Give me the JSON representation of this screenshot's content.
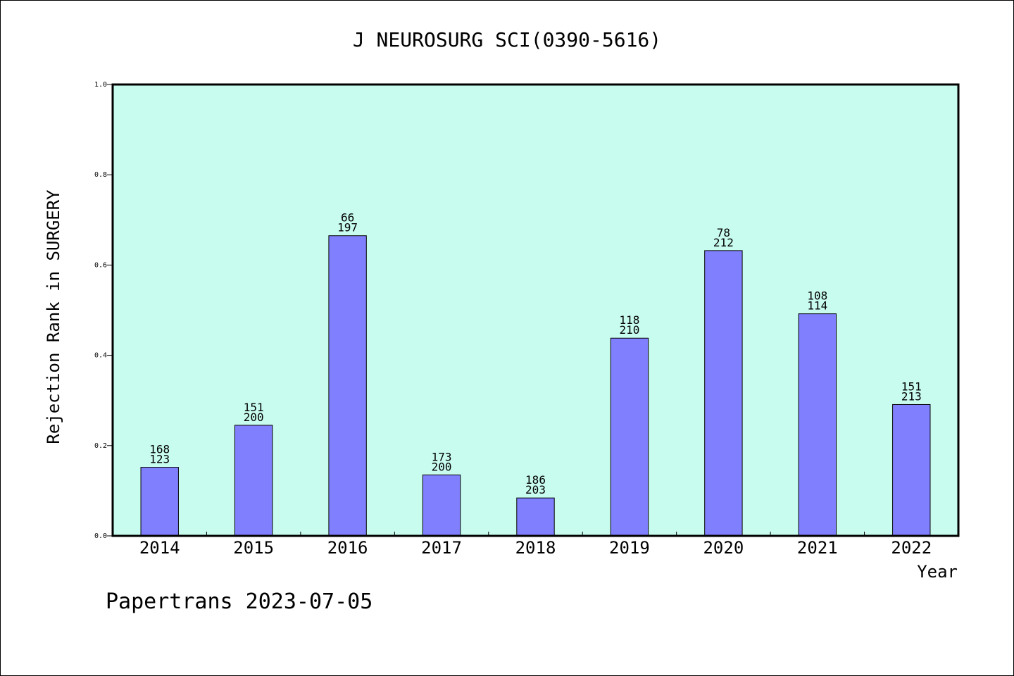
{
  "chart_data": {
    "type": "bar",
    "title": "J NEUROSURG SCI(0390-5616)",
    "xlabel": "Year",
    "ylabel": "Rejection Rank in SURGERY",
    "ylim": [
      0,
      1.0
    ],
    "yticks": [
      "0.0",
      "0.2",
      "0.4",
      "0.6",
      "0.8",
      "1.0"
    ],
    "grid": false,
    "categories": [
      "2014",
      "2015",
      "2016",
      "2017",
      "2018",
      "2019",
      "2020",
      "2021",
      "2022"
    ],
    "values": [
      0.152,
      0.245,
      0.665,
      0.135,
      0.084,
      0.438,
      0.632,
      0.492,
      0.291
    ],
    "labels_top": [
      "168",
      "151",
      "66",
      "173",
      "186",
      "118",
      "78",
      "108",
      "151"
    ],
    "labels_bottom": [
      "123",
      "200",
      "197",
      "200",
      "203",
      "210",
      "212",
      "114",
      "213"
    ],
    "colors": {
      "plot_background": "#c8fcee",
      "bar": "#8080ff"
    }
  },
  "footer": "Papertrans 2023-07-05"
}
